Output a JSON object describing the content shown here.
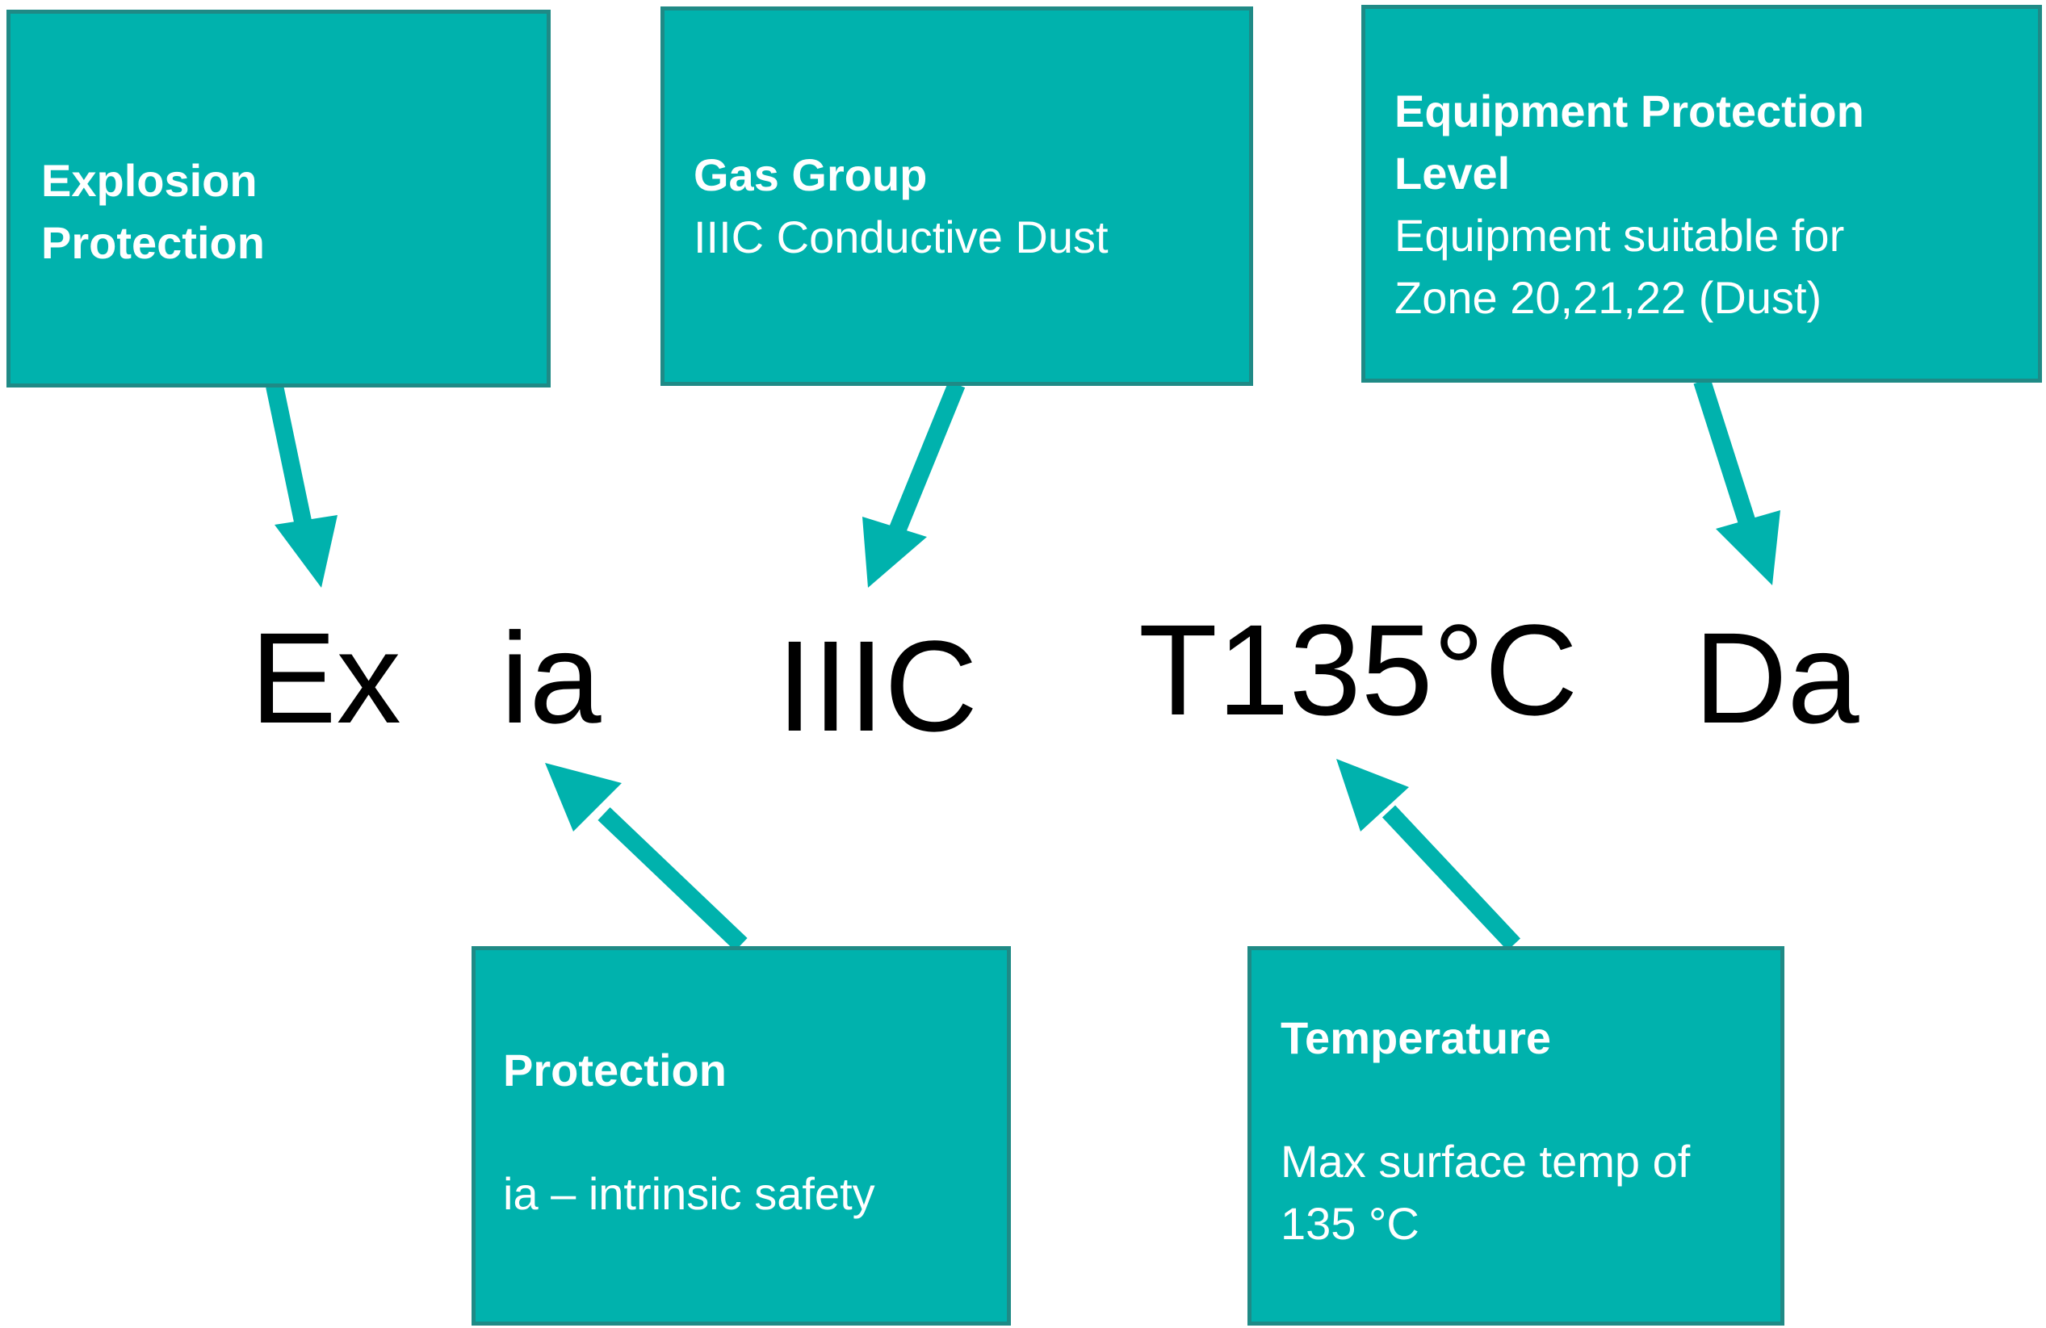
{
  "colors": {
    "box_fill": "#00b2ad",
    "box_border": "#1f8a86",
    "arrow": "#00b2ad",
    "text": "#000000",
    "box_text": "#ffffff"
  },
  "code_parts": [
    "Ex",
    "ia",
    "IIIC",
    "T135°C",
    "Da"
  ],
  "boxes": {
    "explosion": {
      "title": "Explosion\nProtection",
      "desc": ""
    },
    "gas_group": {
      "title": "Gas Group",
      "desc": "IIIC Conductive Dust"
    },
    "epl": {
      "title": "Equipment Protection\nLevel",
      "desc": "Equipment suitable for\nZone 20,21,22 (Dust)"
    },
    "protection": {
      "title": "Protection",
      "desc": "ia – intrinsic safety"
    },
    "temperature": {
      "title": "Temperature",
      "desc": "Max surface temp of\n135 °C"
    }
  }
}
